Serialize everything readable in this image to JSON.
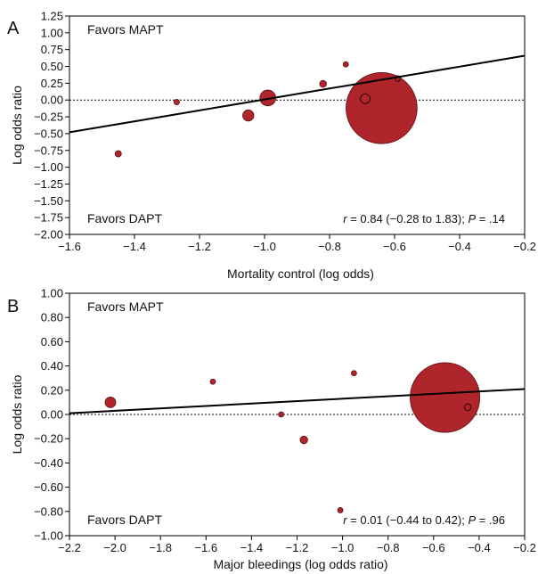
{
  "colors": {
    "bubble_fill": "#b0252c",
    "bubble_stroke": "#5a0f14",
    "line": "#000000",
    "dotted_line": "#000000"
  },
  "chart_data": [
    {
      "type": "scatter",
      "panel_label": "A",
      "xlabel": "Mortality control (log odds)",
      "ylabel": "Log odds ratio",
      "xlim": [
        -1.6,
        -0.2
      ],
      "ylim": [
        -2.0,
        1.25
      ],
      "x_ticks": [
        -1.6,
        -1.4,
        -1.2,
        -1.0,
        -0.8,
        -0.6,
        -0.4,
        -0.2
      ],
      "x_tick_labels": [
        "−1.6",
        "−1.4",
        "−1.2",
        "−1.0",
        "−0.8",
        "−0.6",
        "−0.4",
        "−0.2"
      ],
      "y_ticks": [
        1.25,
        1.0,
        0.75,
        0.5,
        0.25,
        0.0,
        -0.25,
        -0.5,
        -0.75,
        -1.0,
        -1.25,
        -1.5,
        -1.75,
        -2.0
      ],
      "y_tick_labels": [
        "1.25",
        "1.00",
        "0.75",
        "0.50",
        "0.25",
        "0.00",
        "−0.25",
        "−0.50",
        "−0.75",
        "−1.00",
        "−1.25",
        "−1.50",
        "−1.75",
        "−2.00"
      ],
      "grid": false,
      "reference_line_y": 0,
      "regression_line": {
        "x": [
          -1.6,
          -0.2
        ],
        "y": [
          -0.48,
          0.66
        ]
      },
      "points": [
        {
          "x": -1.45,
          "y": -0.8,
          "weight": 1.0
        },
        {
          "x": -1.27,
          "y": -0.03,
          "weight": 0.8
        },
        {
          "x": -1.05,
          "y": -0.23,
          "weight": 3.2
        },
        {
          "x": -0.99,
          "y": 0.03,
          "weight": 6.5
        },
        {
          "x": -0.82,
          "y": 0.24,
          "weight": 1.2
        },
        {
          "x": -0.75,
          "y": 0.53,
          "weight": 0.5
        },
        {
          "x": -0.69,
          "y": 0.02,
          "weight": 2.5,
          "hollow": true
        },
        {
          "x": -0.64,
          "y": -0.12,
          "weight": 130
        },
        {
          "x": -0.59,
          "y": 0.32,
          "weight": 0.8,
          "hollow": true
        }
      ],
      "annotations": {
        "top_left": "Favors MAPT",
        "bottom_left": "Favors DAPT",
        "stat_r": "r",
        "stat_rest": " = 0.84 (−0.28 to 1.83); ",
        "stat_p": "P",
        "stat_p_value": " = .14"
      }
    },
    {
      "type": "scatter",
      "panel_label": "B",
      "xlabel": "Major bleedings (log odds ratio)",
      "ylabel": "Log odds ratio",
      "xlim": [
        -2.2,
        -0.2
      ],
      "ylim": [
        -1.0,
        1.0
      ],
      "x_ticks": [
        -2.2,
        -2.0,
        -1.8,
        -1.6,
        -1.4,
        -1.2,
        -1.0,
        -0.8,
        -0.6,
        -0.4,
        -0.2
      ],
      "x_tick_labels": [
        "−2.2",
        "−2.0",
        "−1.8",
        "−1.6",
        "−1.4",
        "−1.2",
        "−1.0",
        "−0.8",
        "−0.6",
        "−0.4",
        "−0.2"
      ],
      "y_ticks": [
        1.0,
        0.8,
        0.6,
        0.4,
        0.2,
        0.0,
        -0.2,
        -0.4,
        -0.6,
        -0.8,
        -1.0
      ],
      "y_tick_labels": [
        "1.00",
        "0.80",
        "0.60",
        "0.40",
        "0.20",
        "0.00",
        "−0.20",
        "−0.40",
        "−0.60",
        "−0.80",
        "−1.00"
      ],
      "grid": false,
      "reference_line_y": 0,
      "regression_line": {
        "x": [
          -2.2,
          -0.2
        ],
        "y": [
          0.01,
          0.21
        ]
      },
      "points": [
        {
          "x": -2.02,
          "y": 0.1,
          "weight": 4.0
        },
        {
          "x": -1.57,
          "y": 0.27,
          "weight": 0.7
        },
        {
          "x": -1.27,
          "y": 0.0,
          "weight": 0.5
        },
        {
          "x": -1.17,
          "y": -0.21,
          "weight": 2.0
        },
        {
          "x": -1.01,
          "y": -0.79,
          "weight": 0.6
        },
        {
          "x": -0.95,
          "y": 0.34,
          "weight": 0.5
        },
        {
          "x": -0.55,
          "y": 0.14,
          "weight": 170
        },
        {
          "x": -0.45,
          "y": 0.06,
          "weight": 1.6,
          "hollow": true
        }
      ],
      "annotations": {
        "top_left": "Favors MAPT",
        "bottom_left": "Favors DAPT",
        "stat_r": "r",
        "stat_rest": " = 0.01 (−0.44 to 0.42); ",
        "stat_p": "P",
        "stat_p_value": " = .96"
      }
    }
  ]
}
